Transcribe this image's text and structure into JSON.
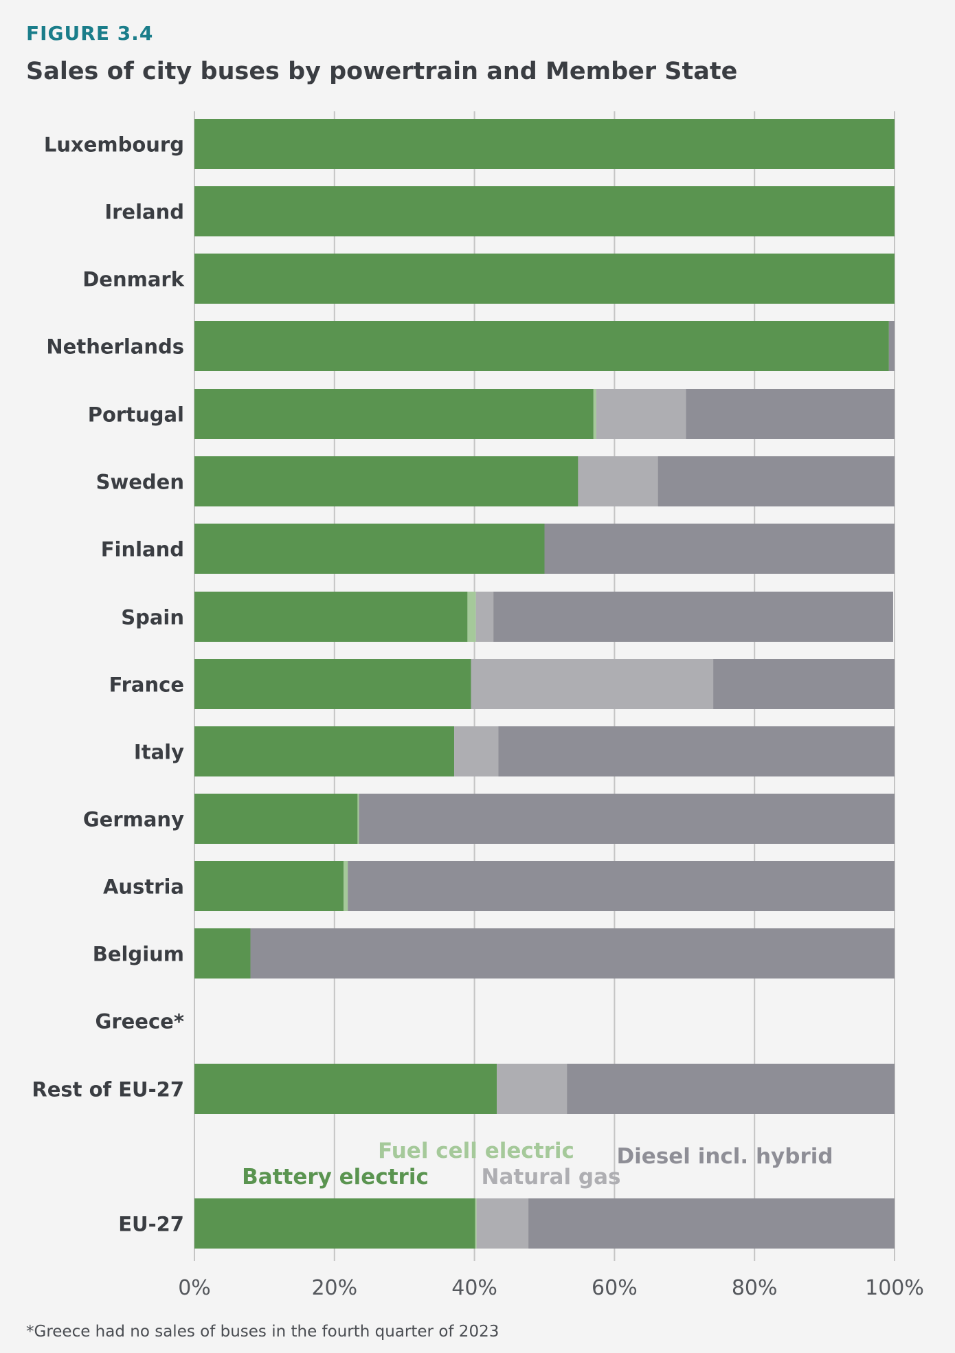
{
  "figure_label": "FIGURE 3.4",
  "title": "Sales of city buses by powertrain and Member State",
  "footnote": "*Greece had no sales of buses in the fourth quarter of 2023",
  "colors": {
    "battery_electric": "#5a9450",
    "fuel_cell_electric": "#a5c99a",
    "natural_gas": "#aeaeb2",
    "diesel_incl_hybrid": "#8e8e96",
    "grid": "#c4c4c4",
    "category_text": "#3a3d42",
    "tick_text": "#55585d"
  },
  "chart_data": {
    "type": "bar",
    "orientation": "horizontal",
    "stacked": true,
    "unit": "%",
    "xlim": [
      0,
      100
    ],
    "x_ticks": [
      "0%",
      "20%",
      "40%",
      "60%",
      "80%",
      "100%"
    ],
    "grid": true,
    "categories": [
      "Luxembourg",
      "Ireland",
      "Denmark",
      "Netherlands",
      "Portugal",
      "Sweden",
      "Finland",
      "Spain",
      "France",
      "Italy",
      "Germany",
      "Austria",
      "Belgium",
      "Greece*",
      "Rest of EU-27",
      "EU-27"
    ],
    "series": [
      {
        "name": "Battery electric",
        "color_key": "battery_electric",
        "values": [
          100,
          100,
          100,
          99.2,
          57.0,
          54.8,
          50.0,
          39.0,
          39.5,
          37.1,
          23.3,
          21.3,
          8.0,
          0,
          43.2,
          40.1
        ]
      },
      {
        "name": "Fuel cell electric",
        "color_key": "fuel_cell_electric",
        "values": [
          0,
          0,
          0,
          0,
          0.4,
          0,
          0,
          1.2,
          0,
          0,
          0.2,
          0.6,
          0,
          0,
          0,
          0.2
        ]
      },
      {
        "name": "Natural gas",
        "color_key": "natural_gas",
        "values": [
          0,
          0,
          0,
          0,
          12.8,
          11.4,
          0,
          2.5,
          34.6,
          6.3,
          0,
          0,
          0,
          0,
          10.0,
          7.4
        ]
      },
      {
        "name": "Diesel incl. hybrid",
        "color_key": "diesel_incl_hybrid",
        "values": [
          0,
          0,
          0,
          0.8,
          29.8,
          33.8,
          50.0,
          57.1,
          25.9,
          56.6,
          76.5,
          78.1,
          92.0,
          0,
          46.8,
          52.3
        ]
      }
    ],
    "legend_placement": "inline-above-last-bar"
  }
}
